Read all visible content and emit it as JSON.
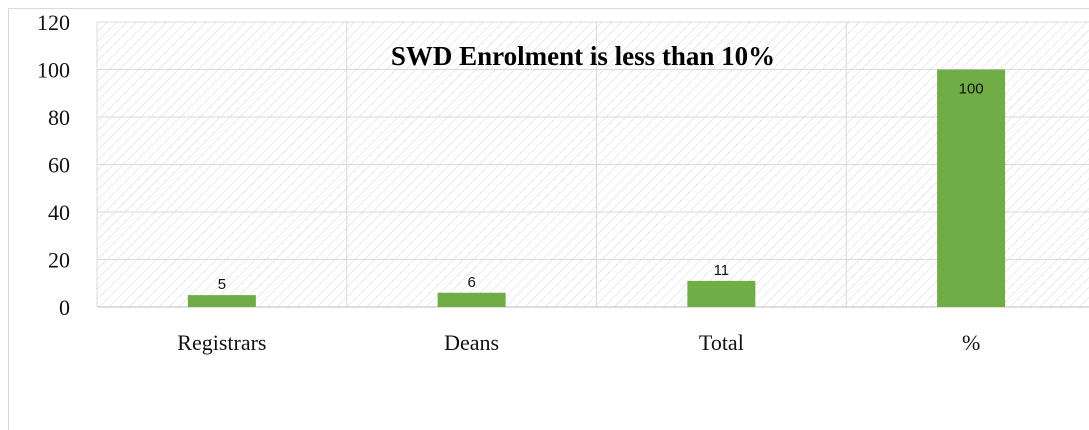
{
  "chart_data": {
    "type": "bar",
    "title": "SWD Enrolment is less than 10%",
    "categories": [
      "Registrars",
      "Deans",
      "Total",
      "%"
    ],
    "values": [
      5,
      6,
      11,
      100
    ],
    "data_labels": [
      "5",
      "6",
      "11",
      "100"
    ],
    "ylim": [
      0,
      120
    ],
    "yticks": [
      "0",
      "20",
      "40",
      "60",
      "80",
      "100",
      "120"
    ],
    "xlabel": "",
    "ylabel": "",
    "grid": true,
    "legend": "none",
    "bar_color": "#70ad47",
    "grid_color": "#d9d9d9",
    "plot_hatch_color": "#dcdcdc"
  }
}
